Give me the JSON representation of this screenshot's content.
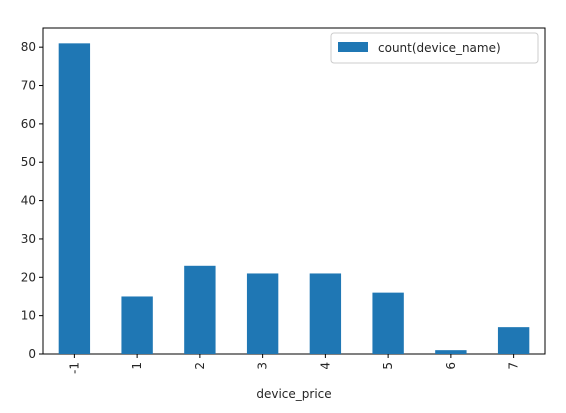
{
  "chart_data": {
    "type": "bar",
    "categories": [
      "-1",
      "1",
      "2",
      "3",
      "4",
      "5",
      "6",
      "7"
    ],
    "series": [
      {
        "name": "count(device_name)",
        "values": [
          81,
          15,
          23,
          21,
          21,
          16,
          1,
          7
        ],
        "color": "#1f77b4"
      }
    ],
    "xlabel": "device_price",
    "ylabel": "",
    "ylim": [
      0,
      85
    ],
    "yticks": [
      0,
      10,
      20,
      30,
      40,
      50,
      60,
      70,
      80
    ],
    "x_tick_rotation": "vertical",
    "grid": false,
    "legend_position": "top-right"
  }
}
